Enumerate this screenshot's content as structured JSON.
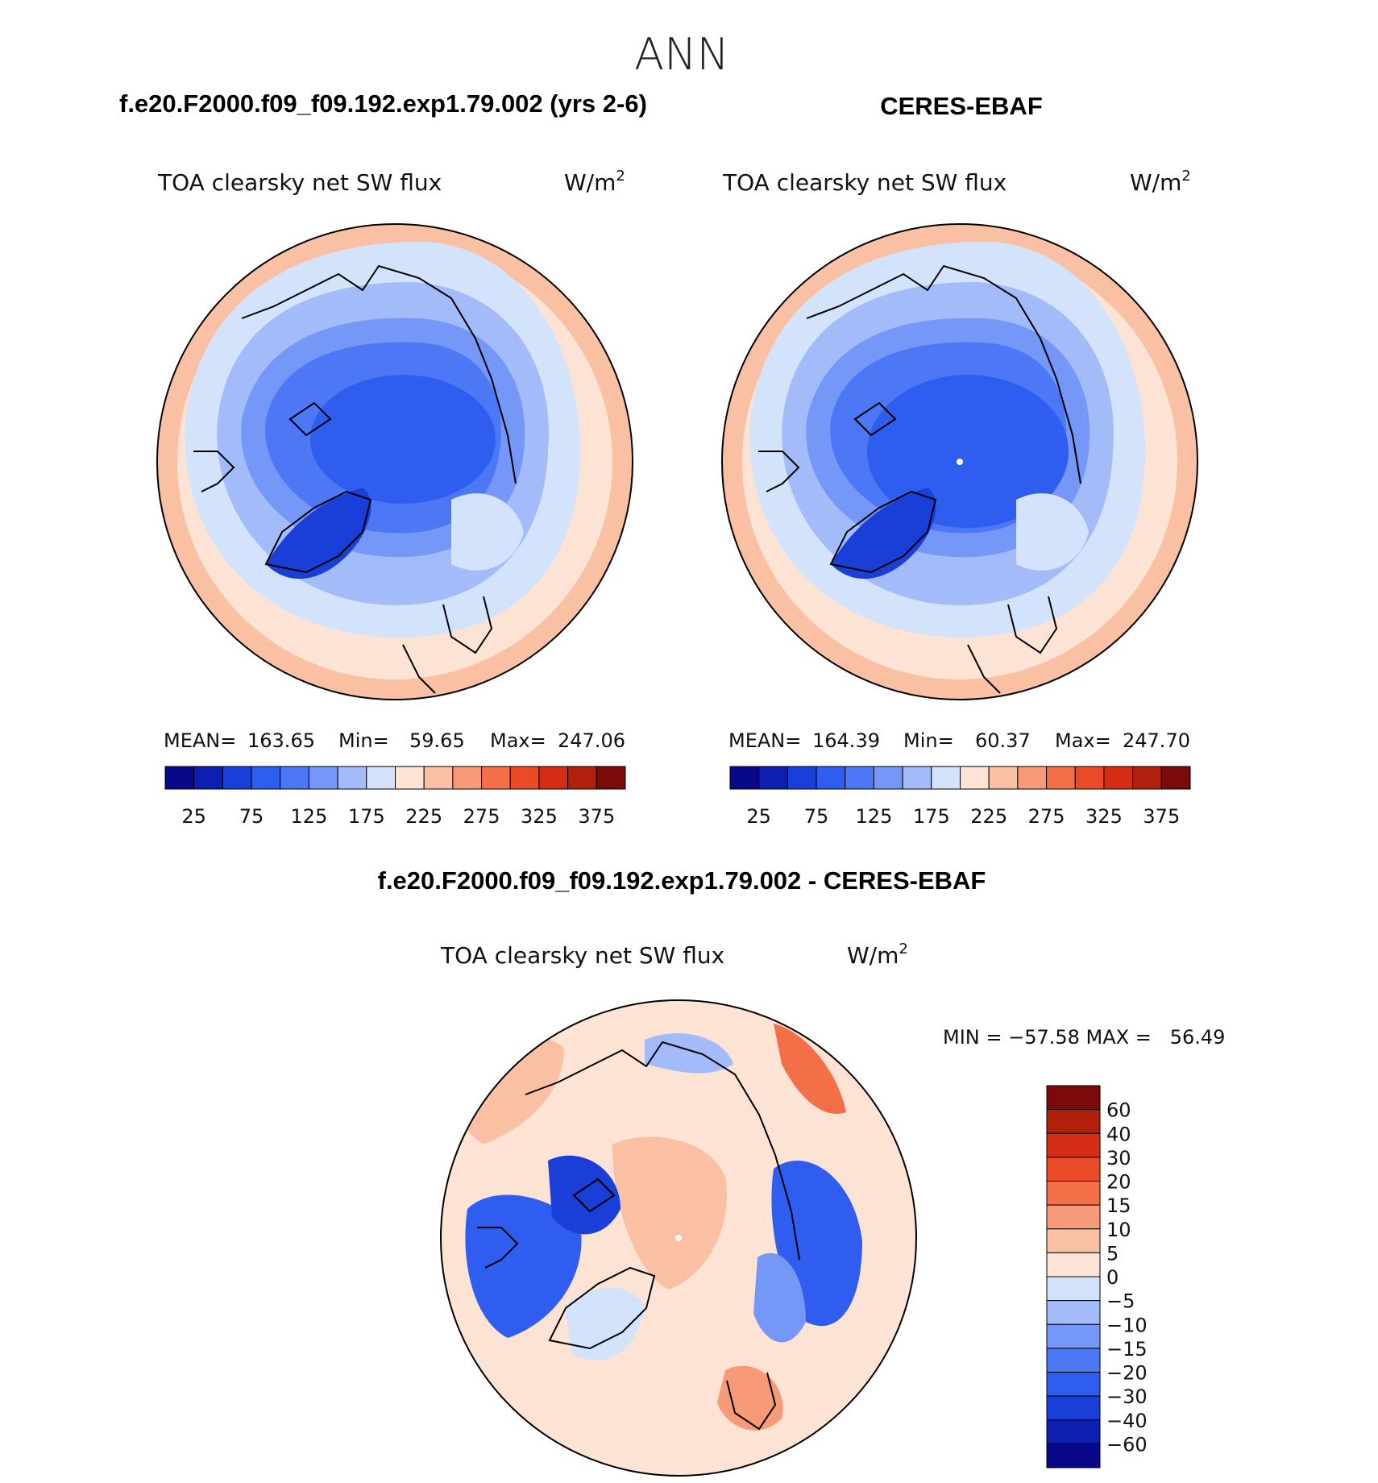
{
  "page": {
    "title": "ANN",
    "top_left_heading": "f.e20.F2000.f09_f09.192.exp1.79.002 (yrs 2-6)",
    "top_right_heading": "CERES-EBAF",
    "bottom_heading": "f.e20.F2000.f09_f09.192.exp1.79.002 - CERES-EBAF"
  },
  "colors": {
    "abs_scale": [
      "#08088a",
      "#0c1fb0",
      "#1a3fd8",
      "#2f5df0",
      "#4d78f5",
      "#7597f7",
      "#a3bcf9",
      "#d3e3fb",
      "#fde3d4",
      "#f9c0a4",
      "#f79a77",
      "#f36f48",
      "#ea4a25",
      "#d42d14",
      "#b0200c",
      "#7d0a0a"
    ],
    "diff_scale": [
      "#7d0a0a",
      "#b0200c",
      "#d42d14",
      "#ea4a25",
      "#f36f48",
      "#f79a77",
      "#f9c0a4",
      "#fde3d4",
      "#d3e3fb",
      "#a3bcf9",
      "#7597f7",
      "#4d78f5",
      "#2f5df0",
      "#1a3fd8",
      "#0c1fb0",
      "#08088a"
    ]
  },
  "chart_data": [
    {
      "type": "heatmap",
      "projection": "north-polar-stereographic",
      "title": "TOA clearsky net SW flux",
      "units": "W/m",
      "units_sup": "2",
      "stats": {
        "mean_label": "MEAN=",
        "mean": "163.65",
        "min_label": "Min=",
        "min": "59.65",
        "max_label": "Max=",
        "max": "247.06"
      },
      "colorbar": {
        "orientation": "horizontal",
        "levels": [
          25,
          50,
          75,
          100,
          125,
          150,
          175,
          200,
          225,
          250,
          275,
          300,
          325,
          350,
          375
        ],
        "tick_labels": [
          "25",
          "75",
          "125",
          "175",
          "225",
          "275",
          "325",
          "375"
        ]
      }
    },
    {
      "type": "heatmap",
      "projection": "north-polar-stereographic",
      "title": "TOA clearsky net SW flux",
      "units": "W/m",
      "units_sup": "2",
      "stats": {
        "mean_label": "MEAN=",
        "mean": "164.39",
        "min_label": "Min=",
        "min": "60.37",
        "max_label": "Max=",
        "max": "247.70"
      },
      "colorbar": {
        "orientation": "horizontal",
        "levels": [
          25,
          50,
          75,
          100,
          125,
          150,
          175,
          200,
          225,
          250,
          275,
          300,
          325,
          350,
          375
        ],
        "tick_labels": [
          "25",
          "75",
          "125",
          "175",
          "225",
          "275",
          "325",
          "375"
        ]
      }
    },
    {
      "type": "heatmap",
      "projection": "north-polar-stereographic",
      "title": "TOA clearsky net SW flux",
      "units": "W/m",
      "units_sup": "2",
      "stats_text": "MIN = −57.58 MAX =   56.49",
      "colorbar": {
        "orientation": "vertical",
        "levels": [
          60,
          40,
          30,
          20,
          15,
          10,
          5,
          0,
          -5,
          -10,
          -15,
          -20,
          -30,
          -40,
          -60
        ],
        "tick_labels": [
          "60",
          "40",
          "30",
          "20",
          "15",
          "10",
          "5",
          "0",
          "−5",
          "−10",
          "−15",
          "−20",
          "−30",
          "−40",
          "−60"
        ]
      }
    }
  ]
}
